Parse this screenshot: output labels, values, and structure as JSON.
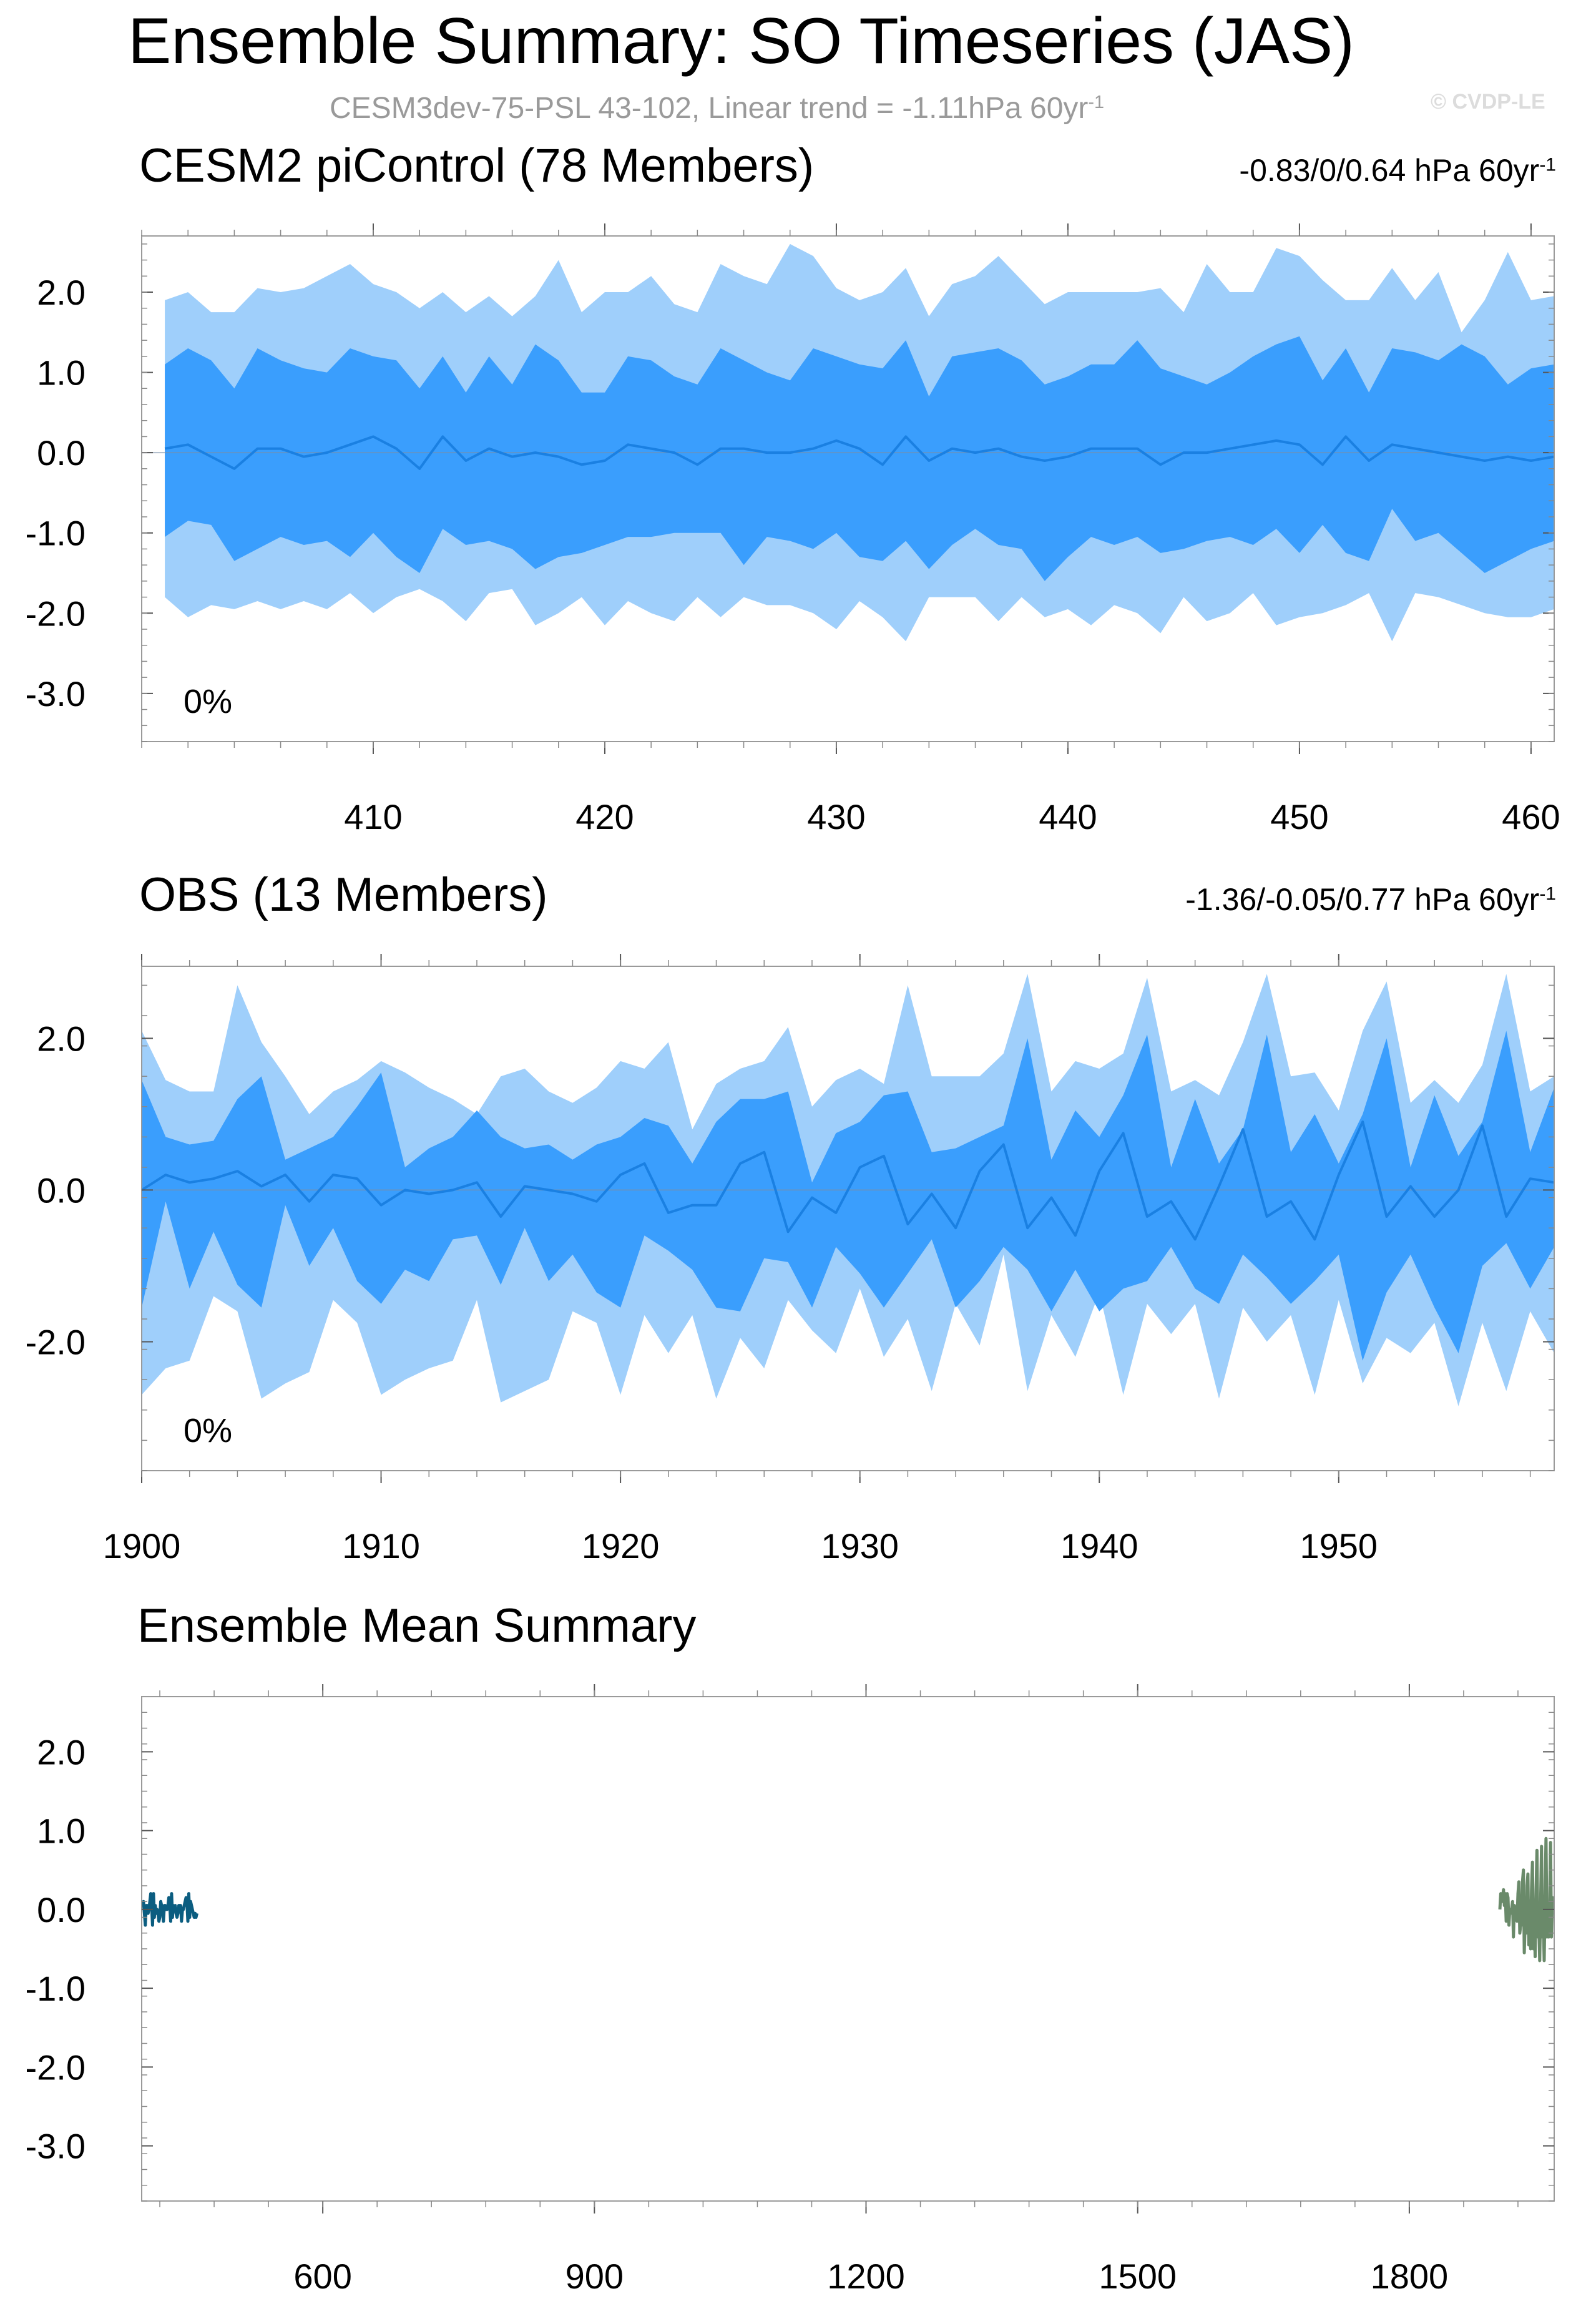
{
  "header": {
    "title": "Ensemble Summary: SO Timeseries (JAS)",
    "subtitle_main": "CESM3dev-75-PSL 43-102, Linear trend = -1.11hPa 60yr",
    "subtitle_sup": "-1",
    "watermark": "© CVDP-LE"
  },
  "colors": {
    "band_outer": "#9fcffb",
    "band_inner": "#3a9efd",
    "mean_line": "#1a80e2",
    "cesm_title": "#006683",
    "obs_title": "#6b8f6b",
    "summary_cesm": "#0b5d80",
    "summary_obs": "#6a8a6a"
  },
  "chart_data": [
    {
      "type": "area",
      "title": "CESM2 piControl (78 Members)",
      "trend_text": "-0.83/0/0.64 hPa 60yr",
      "trend_sup": "-1",
      "annotation": "0%",
      "x_start": 401,
      "xlim": [
        400,
        461
      ],
      "ylim": [
        -3.6,
        2.7
      ],
      "xticks": [
        410,
        420,
        430,
        440,
        450,
        460
      ],
      "yticks": [
        2.0,
        1.0,
        0.0,
        -1.0,
        -2.0,
        -3.0
      ],
      "ytick_labels": [
        "2.0",
        "1.0",
        "0.0",
        "-1.0",
        "-2.0",
        "-3.0"
      ],
      "series": {
        "outer_upper": [
          1.9,
          2.0,
          1.75,
          1.75,
          2.05,
          2.0,
          2.05,
          2.2,
          2.35,
          2.1,
          2.0,
          1.8,
          2.0,
          1.75,
          1.95,
          1.7,
          1.95,
          2.4,
          1.75,
          2.0,
          2.0,
          2.2,
          1.85,
          1.75,
          2.35,
          2.2,
          2.1,
          2.6,
          2.45,
          2.05,
          1.9,
          2.0,
          2.3,
          1.7,
          2.1,
          2.2,
          2.45,
          2.15,
          1.85,
          2.0,
          2.0,
          2.0,
          2.0,
          2.05,
          1.75,
          2.35,
          2.0,
          2.0,
          2.55,
          2.45,
          2.15,
          1.9,
          1.9,
          2.3,
          1.9,
          2.25,
          1.5,
          1.9,
          2.5,
          1.9,
          1.95
        ],
        "inner_upper": [
          1.1,
          1.3,
          1.15,
          0.8,
          1.3,
          1.15,
          1.05,
          1.0,
          1.3,
          1.2,
          1.15,
          0.8,
          1.2,
          0.75,
          1.2,
          0.85,
          1.35,
          1.15,
          0.75,
          0.75,
          1.2,
          1.15,
          0.95,
          0.85,
          1.3,
          1.15,
          1.0,
          0.9,
          1.3,
          1.2,
          1.1,
          1.05,
          1.4,
          0.7,
          1.2,
          1.25,
          1.3,
          1.15,
          0.85,
          0.95,
          1.1,
          1.1,
          1.4,
          1.05,
          0.95,
          0.85,
          1.0,
          1.2,
          1.35,
          1.45,
          0.9,
          1.3,
          0.75,
          1.3,
          1.25,
          1.15,
          1.35,
          1.2,
          0.85,
          1.05,
          1.1
        ],
        "mean": [
          0.05,
          0.1,
          -0.05,
          -0.2,
          0.05,
          0.05,
          -0.05,
          0.0,
          0.1,
          0.2,
          0.05,
          -0.2,
          0.2,
          -0.1,
          0.05,
          -0.05,
          0.0,
          -0.05,
          -0.15,
          -0.1,
          0.1,
          0.05,
          0.0,
          -0.15,
          0.05,
          0.05,
          0.0,
          0.0,
          0.05,
          0.15,
          0.05,
          -0.15,
          0.2,
          -0.1,
          0.05,
          0.0,
          0.05,
          -0.05,
          -0.1,
          -0.05,
          0.05,
          0.05,
          0.05,
          -0.15,
          0.0,
          0.0,
          0.05,
          0.1,
          0.15,
          0.1,
          -0.15,
          0.2,
          -0.1,
          0.1,
          0.05,
          0.0,
          -0.05,
          -0.1,
          -0.05,
          -0.1,
          -0.05
        ],
        "inner_lower": [
          -1.05,
          -0.85,
          -0.9,
          -1.35,
          -1.2,
          -1.05,
          -1.15,
          -1.1,
          -1.3,
          -1.0,
          -1.3,
          -1.5,
          -0.95,
          -1.15,
          -1.1,
          -1.2,
          -1.45,
          -1.3,
          -1.25,
          -1.15,
          -1.05,
          -1.05,
          -1.0,
          -1.0,
          -1.0,
          -1.4,
          -1.05,
          -1.1,
          -1.2,
          -1.0,
          -1.3,
          -1.35,
          -1.1,
          -1.45,
          -1.15,
          -0.95,
          -1.15,
          -1.2,
          -1.6,
          -1.3,
          -1.05,
          -1.15,
          -1.05,
          -1.25,
          -1.2,
          -1.1,
          -1.05,
          -1.15,
          -0.95,
          -1.25,
          -0.9,
          -1.25,
          -1.35,
          -0.7,
          -1.1,
          -1.0,
          -1.25,
          -1.5,
          -1.35,
          -1.2,
          -1.1
        ],
        "outer_lower": [
          -1.8,
          -2.05,
          -1.9,
          -1.95,
          -1.85,
          -1.95,
          -1.85,
          -1.95,
          -1.75,
          -2.0,
          -1.8,
          -1.7,
          -1.85,
          -2.1,
          -1.75,
          -1.7,
          -2.15,
          -2.0,
          -1.8,
          -2.15,
          -1.85,
          -2.0,
          -2.1,
          -1.8,
          -2.05,
          -1.8,
          -1.9,
          -1.9,
          -2.0,
          -2.2,
          -1.85,
          -2.05,
          -2.35,
          -1.8,
          -1.8,
          -1.8,
          -2.1,
          -1.8,
          -2.05,
          -1.95,
          -2.15,
          -1.9,
          -2.0,
          -2.25,
          -1.8,
          -2.1,
          -2.0,
          -1.75,
          -2.15,
          -2.05,
          -2.0,
          -1.9,
          -1.75,
          -2.35,
          -1.75,
          -1.8,
          -1.9,
          -2.0,
          -2.05,
          -2.05,
          -1.95
        ]
      }
    },
    {
      "type": "area",
      "title": "OBS (13 Members)",
      "trend_text": "-1.36/-0.05/0.77 hPa 60yr",
      "trend_sup": "-1",
      "annotation": "0%",
      "x_start": 1900,
      "xlim": [
        1900,
        1959
      ],
      "ylim": [
        -3.7,
        2.95
      ],
      "xticks": [
        1900,
        1910,
        1920,
        1930,
        1940,
        1950
      ],
      "yticks": [
        2.0,
        0.0,
        -2.0
      ],
      "ytick_labels": [
        "2.0",
        "0.0",
        "-2.0"
      ],
      "series": {
        "outer_upper": [
          2.1,
          1.45,
          1.3,
          1.3,
          2.7,
          1.95,
          1.5,
          1.0,
          1.3,
          1.45,
          1.7,
          1.55,
          1.35,
          1.2,
          1.0,
          1.5,
          1.6,
          1.3,
          1.15,
          1.35,
          1.7,
          1.6,
          1.95,
          0.8,
          1.4,
          1.6,
          1.7,
          2.15,
          1.1,
          1.45,
          1.6,
          1.4,
          2.7,
          1.5,
          1.5,
          1.5,
          1.8,
          2.85,
          1.3,
          1.7,
          1.6,
          1.8,
          2.8,
          1.3,
          1.45,
          1.25,
          1.95,
          2.85,
          1.5,
          1.55,
          1.05,
          2.1,
          2.75,
          1.15,
          1.45,
          1.15,
          1.65,
          2.85,
          1.3,
          1.5
        ],
        "inner_upper": [
          1.45,
          0.7,
          0.6,
          0.65,
          1.2,
          1.5,
          0.4,
          0.55,
          0.7,
          1.1,
          1.55,
          0.3,
          0.55,
          0.7,
          1.05,
          0.7,
          0.55,
          0.6,
          0.4,
          0.6,
          0.7,
          0.95,
          0.85,
          0.35,
          0.9,
          1.2,
          1.2,
          1.3,
          0.1,
          0.75,
          0.9,
          1.25,
          1.3,
          0.5,
          0.55,
          0.7,
          0.85,
          2.0,
          0.4,
          1.05,
          0.7,
          1.25,
          2.05,
          0.3,
          1.2,
          0.35,
          0.8,
          2.05,
          0.5,
          1.0,
          0.35,
          1.0,
          2.0,
          0.3,
          1.25,
          0.45,
          0.9,
          2.1,
          0.5,
          1.35
        ],
        "mean": [
          0.0,
          0.2,
          0.1,
          0.15,
          0.25,
          0.05,
          0.2,
          -0.15,
          0.2,
          0.15,
          -0.2,
          0.0,
          -0.05,
          0.0,
          0.1,
          -0.35,
          0.05,
          0.0,
          -0.05,
          -0.15,
          0.2,
          0.35,
          -0.3,
          -0.2,
          -0.2,
          0.35,
          0.5,
          -0.55,
          -0.1,
          -0.3,
          0.3,
          0.45,
          -0.45,
          -0.05,
          -0.5,
          0.25,
          0.6,
          -0.5,
          -0.1,
          -0.6,
          0.25,
          0.75,
          -0.35,
          -0.15,
          -0.65,
          0.05,
          0.8,
          -0.35,
          -0.15,
          -0.65,
          0.2,
          0.9,
          -0.35,
          0.05,
          -0.35,
          0.0,
          0.85,
          -0.35,
          0.15,
          0.1
        ],
        "inner_lower": [
          -1.55,
          -0.15,
          -1.3,
          -0.55,
          -1.25,
          -1.55,
          -0.2,
          -1.0,
          -0.5,
          -1.2,
          -1.5,
          -1.05,
          -1.2,
          -0.65,
          -0.6,
          -1.25,
          -0.5,
          -1.2,
          -0.85,
          -1.35,
          -1.55,
          -0.6,
          -0.8,
          -1.05,
          -1.55,
          -1.6,
          -0.9,
          -0.95,
          -1.55,
          -0.75,
          -1.1,
          -1.55,
          -1.1,
          -0.65,
          -1.55,
          -1.2,
          -0.75,
          -1.05,
          -1.6,
          -1.05,
          -1.6,
          -1.3,
          -1.2,
          -0.75,
          -1.3,
          -1.5,
          -0.85,
          -1.15,
          -1.5,
          -1.2,
          -0.85,
          -2.25,
          -1.35,
          -0.85,
          -1.55,
          -2.15,
          -1.0,
          -0.7,
          -1.3,
          -0.75
        ],
        "outer_lower": [
          -2.7,
          -2.35,
          -2.25,
          -1.4,
          -1.6,
          -2.75,
          -2.55,
          -2.4,
          -1.45,
          -1.75,
          -2.7,
          -2.5,
          -2.35,
          -2.25,
          -1.45,
          -2.8,
          -2.65,
          -2.5,
          -1.6,
          -1.75,
          -2.7,
          -1.65,
          -2.15,
          -1.65,
          -2.75,
          -1.95,
          -2.35,
          -1.45,
          -1.85,
          -2.15,
          -1.3,
          -2.2,
          -1.7,
          -2.65,
          -1.5,
          -2.05,
          -0.85,
          -2.65,
          -1.65,
          -2.2,
          -1.35,
          -2.7,
          -1.5,
          -1.9,
          -1.5,
          -2.75,
          -1.55,
          -2.0,
          -1.65,
          -2.7,
          -1.45,
          -2.55,
          -1.95,
          -2.15,
          -1.75,
          -2.85,
          -1.75,
          -2.65,
          -1.6,
          -2.15
        ]
      }
    },
    {
      "type": "line",
      "title": "Ensemble Mean Summary",
      "xlim": [
        400,
        1960
      ],
      "ylim": [
        -3.7,
        2.7
      ],
      "xticks": [
        600,
        900,
        1200,
        1500,
        1800
      ],
      "yticks": [
        2.0,
        1.0,
        0.0,
        -1.0,
        -2.0,
        -3.0
      ],
      "ytick_labels": [
        "2.0",
        "1.0",
        "0.0",
        "-1.0",
        "-2.0",
        "-3.0"
      ],
      "series": [
        {
          "name": "",
          "source": "CESM2 piControl ensemble mean, years 401-461"
        },
        {
          "name": "",
          "source": "OBS ensemble mean, years 1900-1959"
        }
      ]
    }
  ]
}
